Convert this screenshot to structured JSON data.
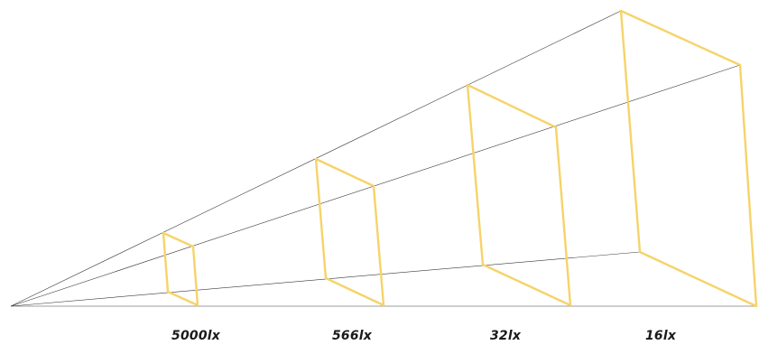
{
  "diagram": {
    "line_color": "#3a3a3a",
    "frame_color": "#f6d36a",
    "labels": [
      "5000lx",
      "566lx",
      "32lx",
      "16lx"
    ]
  }
}
